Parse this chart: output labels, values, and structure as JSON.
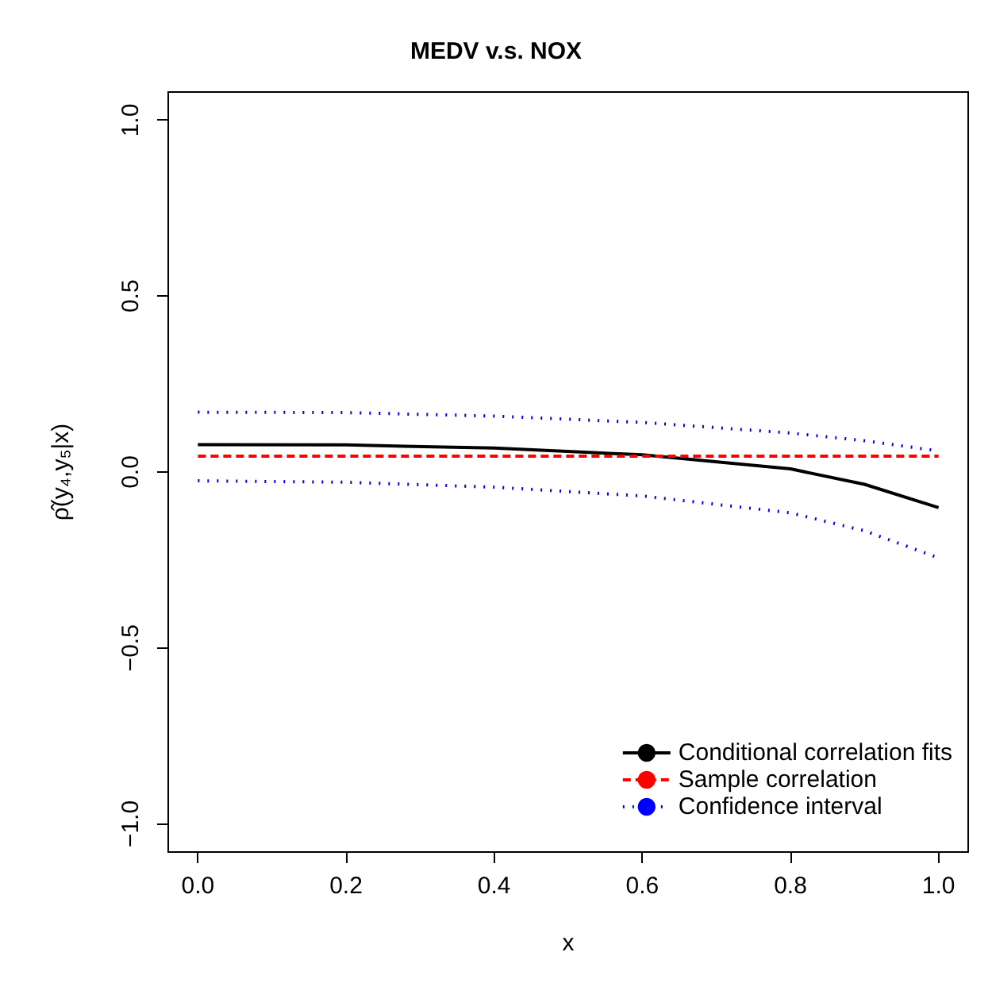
{
  "chart_data": {
    "type": "line",
    "title": "MEDV v.s. NOX",
    "xlabel": "x",
    "ylabel": "ρ̂(y₄,y₅|x)",
    "xlim": [
      -0.04,
      1.04
    ],
    "xticks": [
      {
        "value": 0,
        "label": "0.0"
      },
      {
        "value": 0.2,
        "label": "0.2"
      },
      {
        "value": 0.4,
        "label": "0.4"
      },
      {
        "value": 0.6,
        "label": "0.6"
      },
      {
        "value": 0.8,
        "label": "0.8"
      },
      {
        "value": 1,
        "label": "1.0"
      }
    ],
    "ylim": [
      -1.08,
      1.08
    ],
    "yticks": [
      {
        "value": -1,
        "label": "−1.0"
      },
      {
        "value": -0.5,
        "label": "−0.5"
      },
      {
        "value": 0,
        "label": "0.0"
      },
      {
        "value": 0.5,
        "label": "0.5"
      },
      {
        "value": 1,
        "label": "1.0"
      }
    ],
    "legend": "bottom right",
    "grid": false,
    "marker": "none",
    "series": [
      {
        "name": "Conditional correlation fits",
        "color": "#000000",
        "line_style": "solid",
        "x": [
          0,
          0.2,
          0.4,
          0.6,
          0.8,
          0.9,
          1
        ],
        "values": [
          0.078,
          0.077,
          0.068,
          0.049,
          0.009,
          -0.035,
          -0.101
        ]
      },
      {
        "name": "Sample correlation",
        "color": "#ff0000",
        "line_style": "dashed",
        "x": [
          0,
          1
        ],
        "values": [
          0.045,
          0.045
        ]
      },
      {
        "name": "Confidence interval",
        "color": "#0000ff",
        "line_style": "dotted",
        "x": [
          0,
          0.2,
          0.4,
          0.6,
          0.8,
          0.9,
          0.99
        ],
        "values": [
          0.17,
          0.169,
          0.159,
          0.141,
          0.111,
          0.089,
          0.063
        ]
      },
      {
        "color": "#0000ff",
        "line_style": "dotted",
        "x": [
          0,
          0.2,
          0.4,
          0.6,
          0.8,
          0.9,
          1
        ],
        "values": [
          -0.025,
          -0.029,
          -0.043,
          -0.068,
          -0.116,
          -0.167,
          -0.244
        ]
      }
    ]
  }
}
